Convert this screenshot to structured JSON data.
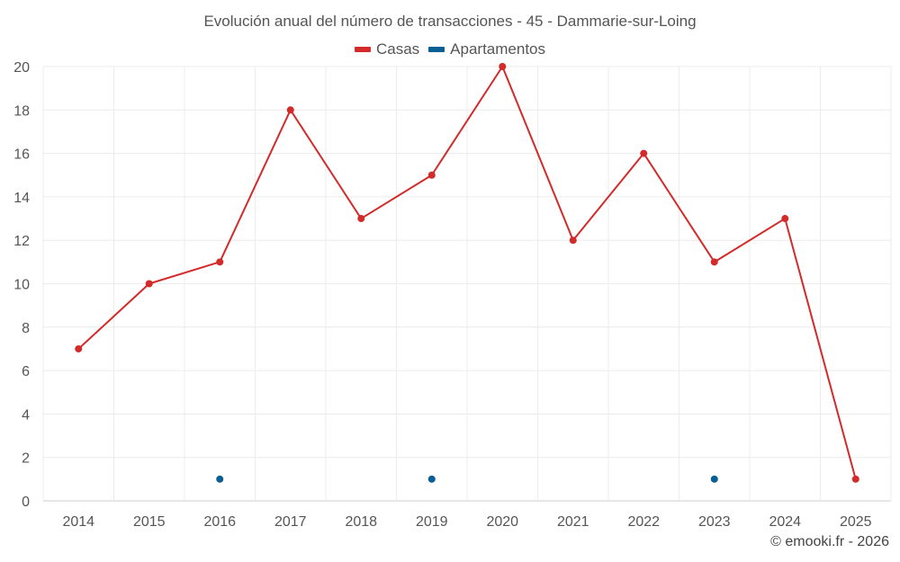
{
  "chart_data": {
    "type": "line",
    "title": "Evolución anual del número de transacciones - 45 - Dammarie-sur-Loing",
    "categories": [
      "2014",
      "2015",
      "2016",
      "2017",
      "2018",
      "2019",
      "2020",
      "2021",
      "2022",
      "2023",
      "2024",
      "2025"
    ],
    "series": [
      {
        "name": "Casas",
        "color": "#d32a2a",
        "values": [
          7,
          10,
          11,
          18,
          13,
          15,
          20,
          12,
          16,
          11,
          13,
          1
        ]
      },
      {
        "name": "Apartamentos",
        "color": "#0a5e96",
        "values": [
          null,
          null,
          1,
          null,
          null,
          1,
          null,
          null,
          null,
          1,
          null,
          null
        ]
      }
    ],
    "ylim": [
      0,
      20
    ],
    "yticks": [
      0,
      2,
      4,
      6,
      8,
      10,
      12,
      14,
      16,
      18,
      20
    ],
    "grid": true,
    "legend": "top-center"
  },
  "credit": "© emooki.fr - 2026"
}
